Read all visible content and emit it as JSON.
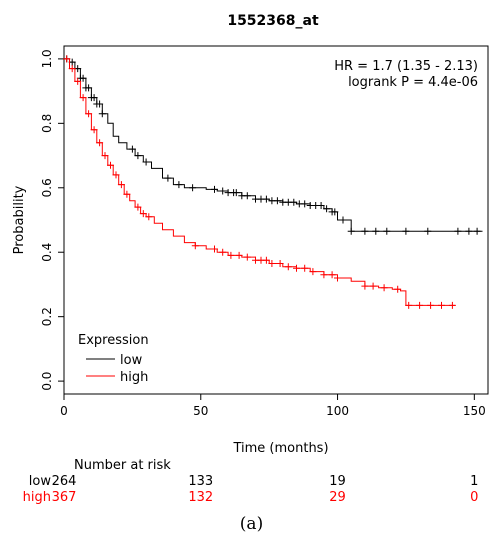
{
  "chart_data": {
    "type": "line",
    "title": "1552368_at",
    "xlabel": "Time (months)",
    "ylabel": "Probability",
    "xlim": [
      0,
      155
    ],
    "ylim": [
      -0.04,
      1.04
    ],
    "x_ticks": [
      0,
      50,
      100,
      150
    ],
    "y_ticks": [
      "0.0",
      "0.2",
      "0.4",
      "0.6",
      "0.8",
      "1.0"
    ],
    "annotations": [
      "HR = 1.7 (1.35 - 2.13)",
      "logrank P = 4.4e-06"
    ],
    "legend": {
      "title": "Expression",
      "position": "bottom-left"
    },
    "series": [
      {
        "name": "low",
        "color": "#000000",
        "x": [
          0,
          2,
          4,
          6,
          8,
          10,
          12,
          14,
          16,
          18,
          20,
          23,
          26,
          29,
          32,
          36,
          40,
          44,
          48,
          52,
          56,
          60,
          65,
          70,
          75,
          80,
          85,
          90,
          95,
          98,
          100,
          105,
          110,
          120,
          130,
          140,
          153
        ],
        "y": [
          1.0,
          0.99,
          0.97,
          0.94,
          0.91,
          0.88,
          0.86,
          0.83,
          0.8,
          0.76,
          0.74,
          0.72,
          0.7,
          0.68,
          0.66,
          0.63,
          0.61,
          0.6,
          0.6,
          0.595,
          0.59,
          0.585,
          0.575,
          0.565,
          0.56,
          0.555,
          0.55,
          0.545,
          0.535,
          0.525,
          0.5,
          0.465,
          0.465,
          0.465,
          0.465,
          0.465,
          0.465
        ],
        "censor_x": [
          1,
          3,
          5,
          6,
          7,
          8,
          9,
          10,
          11,
          12,
          13,
          14,
          25,
          27,
          30,
          38,
          42,
          47,
          55,
          58,
          60,
          62,
          63,
          65,
          67,
          70,
          72,
          74,
          76,
          78,
          80,
          82,
          84,
          86,
          88,
          90,
          92,
          94,
          96,
          98,
          99,
          102,
          105,
          110,
          114,
          118,
          125,
          133,
          144,
          148,
          151
        ]
      },
      {
        "name": "high",
        "color": "#ff0000",
        "x": [
          0,
          2,
          4,
          6,
          8,
          10,
          12,
          14,
          16,
          18,
          20,
          22,
          24,
          26,
          28,
          30,
          33,
          36,
          40,
          44,
          48,
          52,
          56,
          60,
          65,
          70,
          75,
          80,
          85,
          90,
          95,
          100,
          105,
          110,
          115,
          120,
          123,
          125,
          135,
          143
        ],
        "y": [
          1.0,
          0.97,
          0.93,
          0.88,
          0.83,
          0.78,
          0.74,
          0.7,
          0.67,
          0.64,
          0.61,
          0.58,
          0.56,
          0.54,
          0.52,
          0.51,
          0.49,
          0.47,
          0.45,
          0.43,
          0.42,
          0.41,
          0.4,
          0.39,
          0.385,
          0.375,
          0.365,
          0.355,
          0.35,
          0.34,
          0.33,
          0.32,
          0.31,
          0.295,
          0.29,
          0.285,
          0.28,
          0.235,
          0.235,
          0.235
        ],
        "censor_x": [
          1,
          3,
          5,
          7,
          9,
          11,
          13,
          15,
          17,
          19,
          21,
          23,
          27,
          29,
          31,
          48,
          55,
          58,
          61,
          64,
          67,
          70,
          72,
          74,
          76,
          79,
          82,
          85,
          88,
          91,
          95,
          98,
          100,
          110,
          113,
          117,
          122,
          126,
          130,
          134,
          138,
          142
        ]
      }
    ],
    "number_at_risk": {
      "title": "Number at risk",
      "rows": [
        {
          "label": "low",
          "color": "#000000",
          "values": [
            "264",
            "133",
            "19",
            "1"
          ]
        },
        {
          "label": "high",
          "color": "#ff0000",
          "values": [
            "367",
            "132",
            "29",
            "0"
          ]
        }
      ]
    }
  },
  "caption": "(a)"
}
